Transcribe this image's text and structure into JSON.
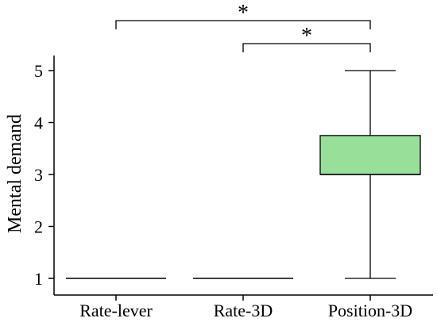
{
  "chart_data": {
    "type": "box",
    "title": "",
    "xlabel": "",
    "ylabel": "Mental demand",
    "ylim": [
      0.8,
      5.3
    ],
    "yticks": [
      1,
      2,
      3,
      4,
      5
    ],
    "grid": false,
    "categories": [
      "Rate-lever",
      "Rate-3D",
      "Position-3D"
    ],
    "boxes": [
      {
        "category": "Rate-lever",
        "min": 1,
        "q1": 1,
        "median": 1,
        "q3": 1,
        "max": 1,
        "color": "#98e09a"
      },
      {
        "category": "Rate-3D",
        "min": 1,
        "q1": 1,
        "median": 1,
        "q3": 1,
        "max": 1,
        "color": "#98e09a"
      },
      {
        "category": "Position-3D",
        "min": 1,
        "q1": 3,
        "median": 3,
        "q3": 3.75,
        "max": 5,
        "color": "#98e09a"
      }
    ],
    "significance": [
      {
        "from": "Rate-lever",
        "to": "Position-3D",
        "label": "*"
      },
      {
        "from": "Rate-3D",
        "to": "Position-3D",
        "label": "*"
      }
    ]
  }
}
